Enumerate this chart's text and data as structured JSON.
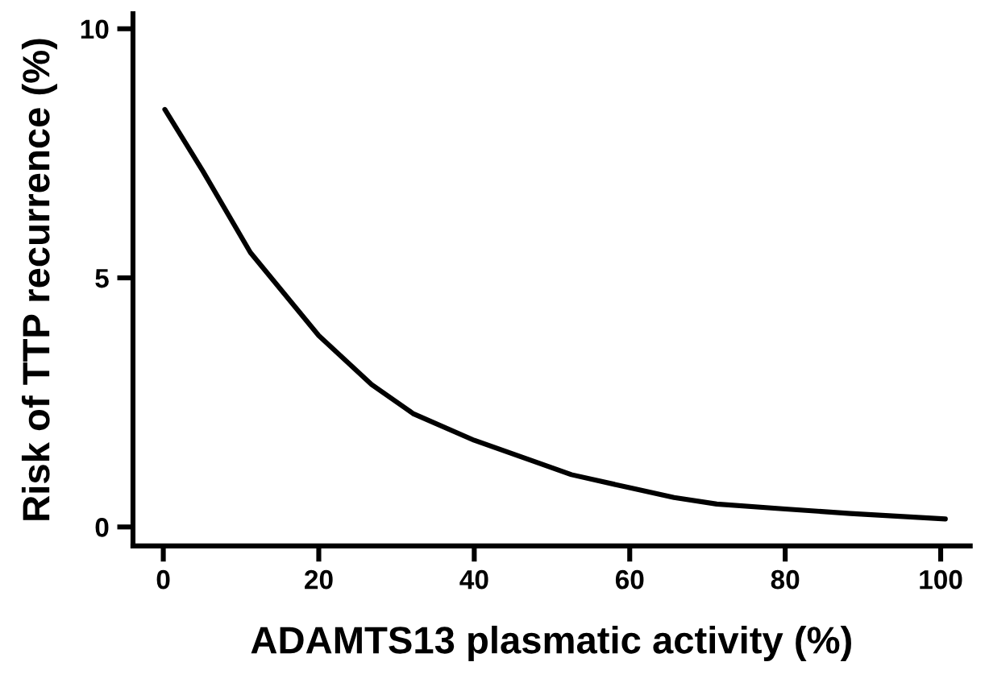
{
  "chart_data": {
    "type": "line",
    "xlabel": "ADAMTS13 plasmatic activity (%)",
    "ylabel": "Risk of TTP recurrence (%)",
    "x": [
      0.2,
      5.1,
      11.2,
      20,
      26.8,
      32.2,
      40,
      47.1,
      52.5,
      60.2,
      65.7,
      71.2,
      80,
      88.4,
      100.6
    ],
    "series": [
      {
        "color": "#000000",
        "values": [
          8.38,
          7.14,
          5.51,
          3.84,
          2.86,
          2.27,
          1.74,
          1.35,
          1.05,
          0.78,
          0.59,
          0.46,
          0.36,
          0.27,
          0.16
        ]
      }
    ],
    "xlim": [
      -3.9,
      103.8
    ],
    "ylim": [
      -0.38,
      10.3
    ],
    "xticks": [
      0,
      20,
      40,
      60,
      80,
      100
    ],
    "yticks": [
      0,
      5,
      10
    ],
    "grid": false,
    "legend": false,
    "marker": "none",
    "line_style": "solid"
  }
}
